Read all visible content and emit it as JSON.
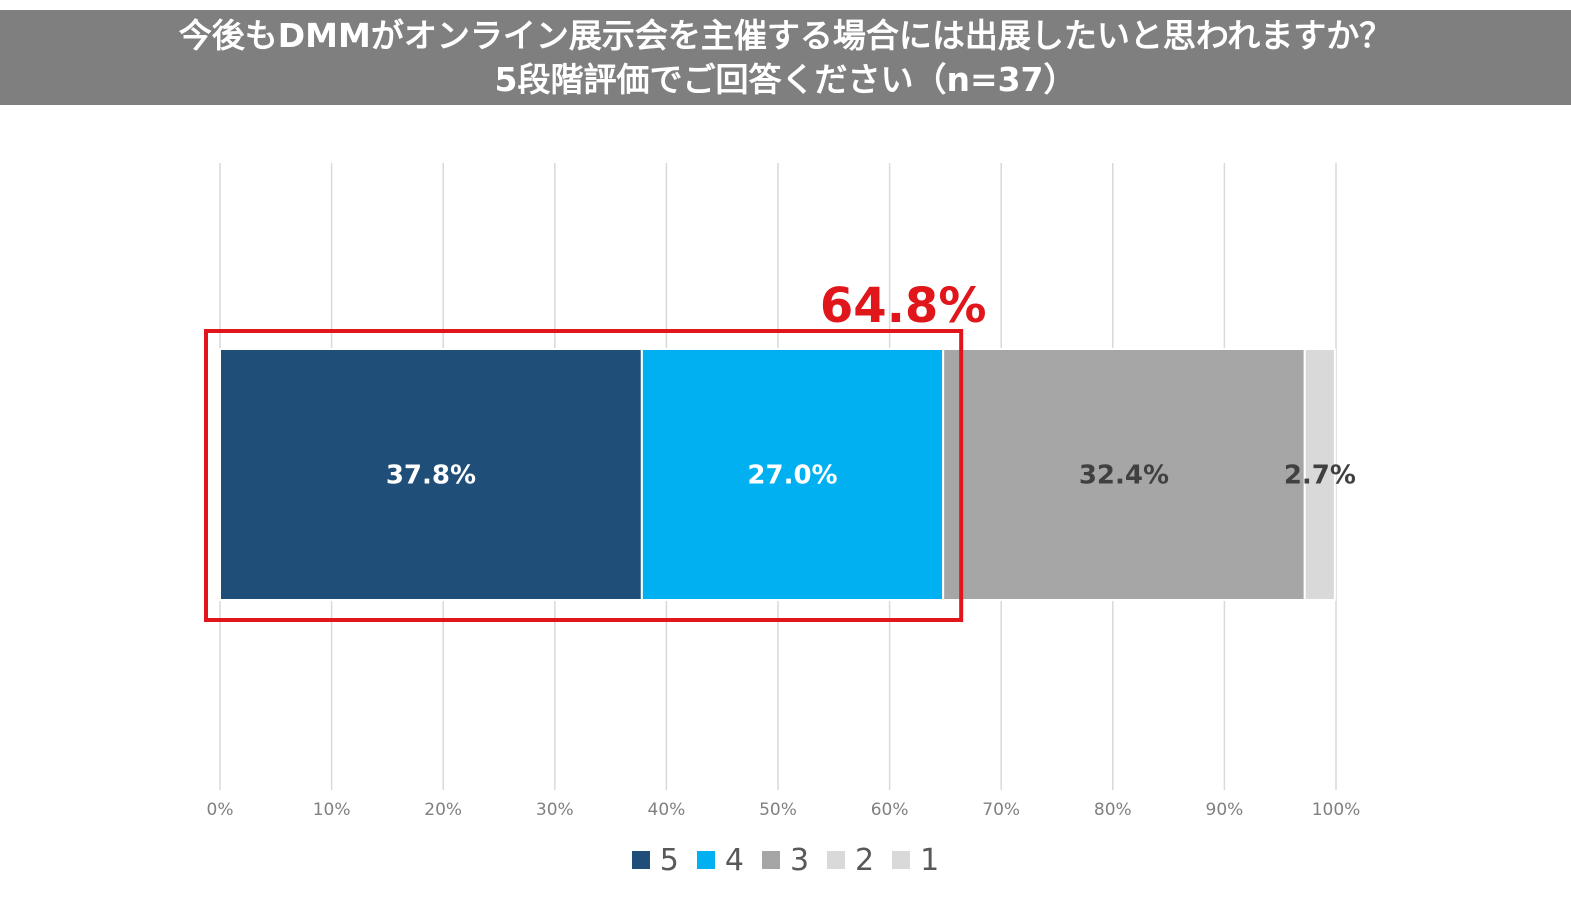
{
  "chart_data": {
    "type": "bar",
    "orientation": "horizontal",
    "stacked": true,
    "title": "今後もDMMがオンライン展示会を主催する場合には出展したいと思われますか？",
    "subtitle": "5段階評価でご回答ください（n=37）",
    "xlim": [
      0,
      100
    ],
    "x_ticks": [
      "0%",
      "10%",
      "20%",
      "30%",
      "40%",
      "50%",
      "60%",
      "70%",
      "80%",
      "90%",
      "100%"
    ],
    "grid": "vertical",
    "legend_position": "bottom",
    "series": [
      {
        "name": "5",
        "value": 37.8,
        "label": "37.8%",
        "color": "#1f4e79",
        "label_color": "#ffffff"
      },
      {
        "name": "4",
        "value": 27.0,
        "label": "27.0%",
        "color": "#00b0f0",
        "label_color": "#ffffff"
      },
      {
        "name": "3",
        "value": 32.4,
        "label": "32.4%",
        "color": "#a6a6a6",
        "label_color": "#404040"
      },
      {
        "name": "2",
        "value": 2.7,
        "label": "2.7%",
        "color": "#d9d9d9",
        "label_color": "#404040"
      },
      {
        "name": "1",
        "value": 0,
        "label": "",
        "color": "#d9d9d9",
        "label_color": "#404040"
      }
    ],
    "annotation": {
      "text": "64.8%",
      "color": "#e0161b",
      "highlight_color": "#e0161b"
    }
  }
}
